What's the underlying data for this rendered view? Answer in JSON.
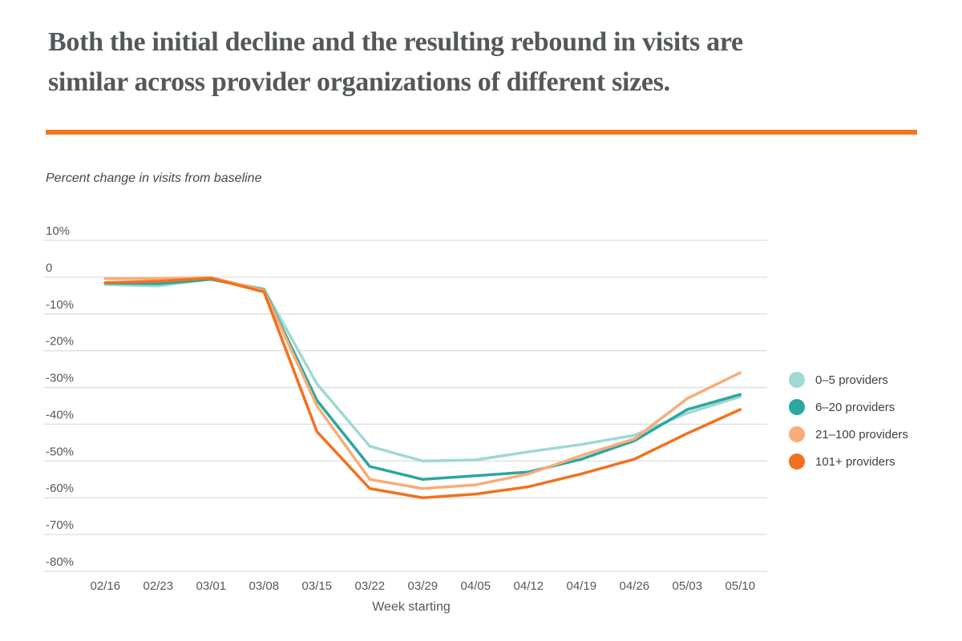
{
  "header": {
    "title_lines": [
      "Both the initial decline and the resulting rebound in visits are",
      "similar across provider organizations of different sizes."
    ],
    "title_color": "#54585a",
    "divider_color": "#f2771f"
  },
  "chart_data": {
    "type": "line",
    "title": "Both the initial decline and the resulting rebound in visits are similar across provider organizations of different sizes.",
    "subtitle": "Percent change in visits from baseline",
    "xlabel": "Week starting",
    "ylabel": "Percent change in visits from baseline",
    "categories": [
      "02/16",
      "02/23",
      "03/01",
      "03/08",
      "03/15",
      "03/22",
      "03/29",
      "04/05",
      "04/12",
      "04/19",
      "04/26",
      "05/03",
      "05/10"
    ],
    "series": [
      {
        "name": "0–5 providers",
        "color": "#9fd8d4",
        "values": [
          -2.0,
          -2.4,
          -0.5,
          -3.2,
          -29.0,
          -46.0,
          -50.0,
          -49.7,
          -47.5,
          -45.5,
          -43.0,
          -37.0,
          -32.5
        ]
      },
      {
        "name": "6–20 providers",
        "color": "#2ba7a0",
        "values": [
          -1.6,
          -1.8,
          -0.6,
          -3.4,
          -33.5,
          -51.5,
          -55.0,
          -54.0,
          -53.0,
          -49.5,
          -44.5,
          -36.0,
          -31.9
        ]
      },
      {
        "name": "21–100 providers",
        "color": "#f9ac79",
        "values": [
          -0.4,
          -0.4,
          -0.1,
          -3.6,
          -35.0,
          -55.0,
          -57.5,
          -56.5,
          -53.5,
          -48.5,
          -44.0,
          -33.0,
          -26.0
        ]
      },
      {
        "name": "101+ providers",
        "color": "#f3701e",
        "values": [
          -1.5,
          -1.1,
          -0.3,
          -4.0,
          -42.0,
          -57.5,
          -60.0,
          -59.0,
          -57.0,
          -53.5,
          -49.5,
          -42.5,
          -36.0
        ]
      }
    ],
    "y_ticks": [
      {
        "value": 10,
        "label": "10%"
      },
      {
        "value": 0,
        "label": "0"
      },
      {
        "value": -10,
        "label": "-10%"
      },
      {
        "value": -20,
        "label": "-20%"
      },
      {
        "value": -30,
        "label": "-30%"
      },
      {
        "value": -40,
        "label": "-40%"
      },
      {
        "value": -50,
        "label": "-50%"
      },
      {
        "value": -60,
        "label": "-60%"
      },
      {
        "value": -70,
        "label": "-70%"
      },
      {
        "value": -80,
        "label": "-80%"
      }
    ],
    "ylim": [
      -80,
      10
    ],
    "grid": true,
    "legend_position": "right",
    "axis_text_color": "#55575a",
    "gridline_color": "#dddddd"
  }
}
